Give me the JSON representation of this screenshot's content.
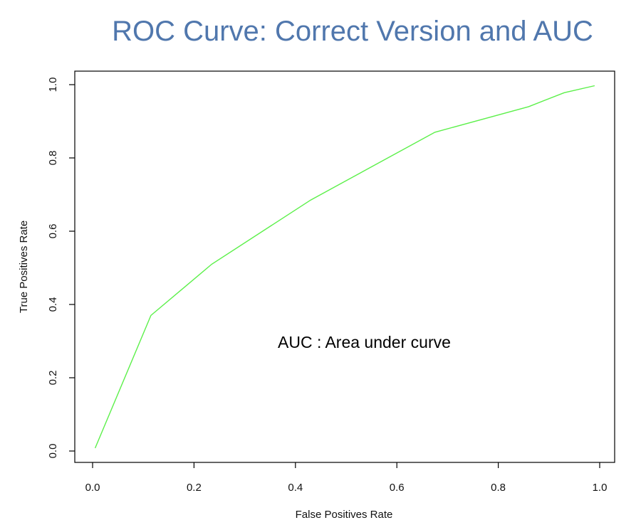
{
  "slide": {
    "title": "ROC Curve: Correct Version and AUC"
  },
  "chart_data": {
    "type": "line",
    "xlabel": "False Positives Rate",
    "ylabel": "True Positives Rate",
    "xlim": [
      0.0,
      1.0
    ],
    "ylim": [
      0.0,
      1.0
    ],
    "xticks": [
      "0.0",
      "0.2",
      "0.4",
      "0.6",
      "0.8",
      "1.0"
    ],
    "yticks": [
      "0.0",
      "0.2",
      "0.4",
      "0.6",
      "0.8",
      "1.0"
    ],
    "grid": false,
    "annotation": "AUC : Area under curve",
    "series": [
      {
        "color": "#5cf04a",
        "x": [
          0.005,
          0.115,
          0.235,
          0.43,
          0.675,
          0.86,
          0.93,
          0.99
        ],
        "y": [
          0.008,
          0.37,
          0.51,
          0.685,
          0.87,
          0.94,
          0.978,
          0.997
        ]
      }
    ]
  }
}
